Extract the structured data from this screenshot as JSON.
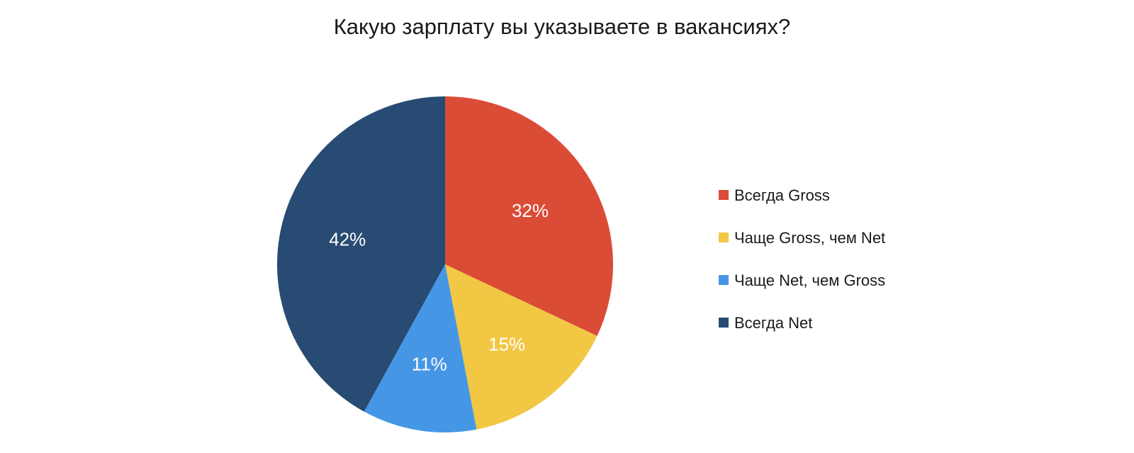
{
  "chart_data": {
    "type": "pie",
    "title": "Какую зарплату вы указываете в вакансиях?",
    "categories": [
      "Всегда Gross",
      "Чаще Gross, чем Net",
      "Чаще Net, чем Gross",
      "Всегда Net"
    ],
    "values": [
      32,
      15,
      11,
      42
    ],
    "data_labels": [
      "32%",
      "15%",
      "11%",
      "42%"
    ],
    "colors": [
      "#DB4C37",
      "#F2C744",
      "#4597E6",
      "#274B72"
    ],
    "start_angle": "12 o'clock",
    "direction": "clockwise",
    "legend_position": "right"
  }
}
